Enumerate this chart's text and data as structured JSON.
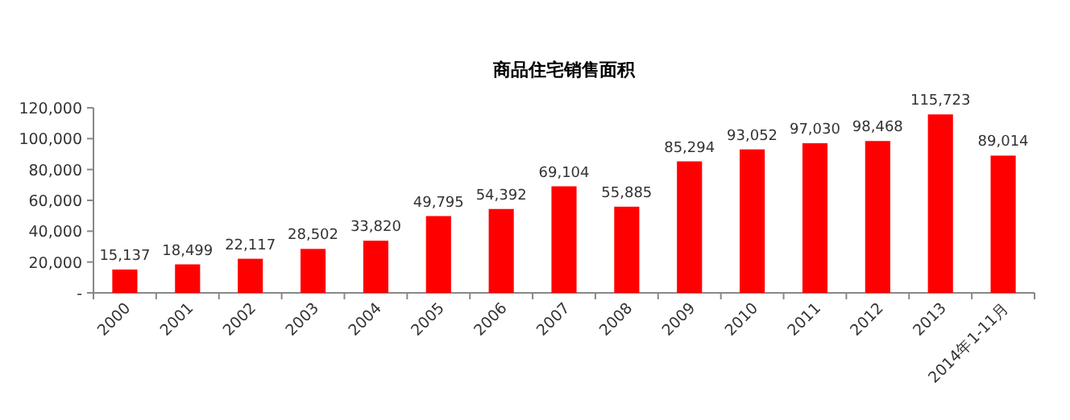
{
  "chart_data": {
    "type": "bar",
    "title": "商品住宅销售面积",
    "categories": [
      "2000",
      "2001",
      "2002",
      "2003",
      "2004",
      "2005",
      "2006",
      "2007",
      "2008",
      "2009",
      "2010",
      "2011",
      "2012",
      "2013",
      "2014年1-11月"
    ],
    "values": [
      15137,
      18499,
      22117,
      28502,
      33820,
      49795,
      54392,
      69104,
      55885,
      85294,
      93052,
      97030,
      98468,
      115723,
      89014
    ],
    "color": "#ff0000",
    "ylim": [
      0,
      120000
    ],
    "yticks": [
      {
        "value": 0,
        "label": "-"
      },
      {
        "value": 20000,
        "label": "20,000"
      },
      {
        "value": 40000,
        "label": "40,000"
      },
      {
        "value": 60000,
        "label": "60,000"
      },
      {
        "value": 80000,
        "label": "80,000"
      },
      {
        "value": 100000,
        "label": "100,000"
      },
      {
        "value": 120000,
        "label": "120,000"
      }
    ],
    "value_labels": [
      "15,137",
      "18,499",
      "22,117",
      "28,502",
      "33,820",
      "49,795",
      "54,392",
      "69,104",
      "55,885",
      "85,294",
      "93,052",
      "97,030",
      "98,468",
      "115,723",
      "89,014"
    ],
    "grid": false
  }
}
